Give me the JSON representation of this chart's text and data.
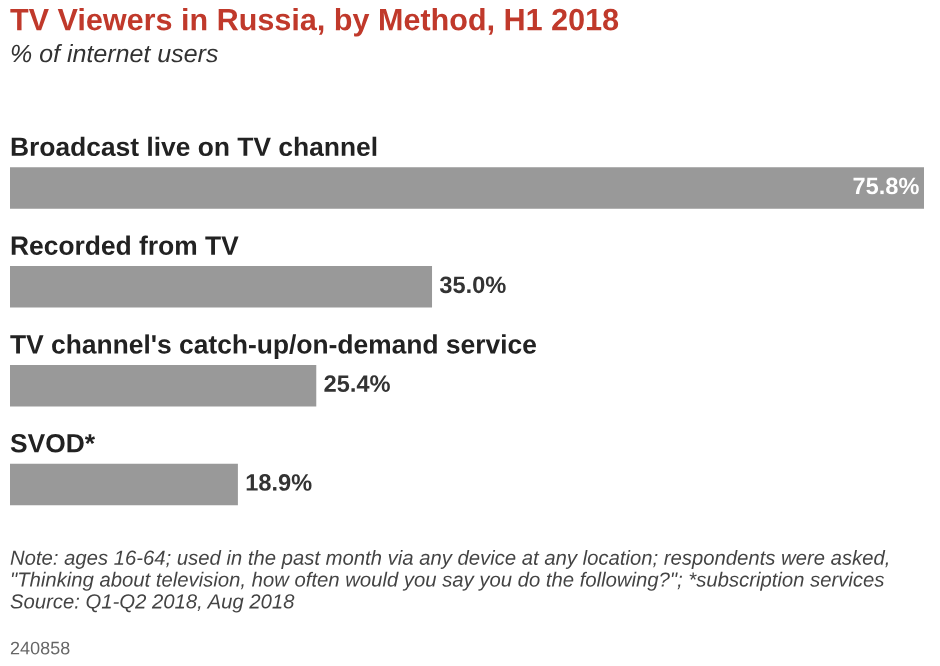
{
  "chart_data": {
    "type": "bar",
    "orientation": "horizontal",
    "title": "TV Viewers in Russia, by Method, H1 2018",
    "subtitle": "% of internet users",
    "categories": [
      "Broadcast live on TV channel",
      "Recorded from TV",
      "TV channel's catch-up/on-demand service",
      "SVOD*"
    ],
    "values": [
      75.8,
      35.0,
      25.4,
      18.9
    ],
    "color": "#999999",
    "data_labels": true,
    "value_labels": [
      "75.8%",
      "35.0%",
      "25.4%",
      "18.9%"
    ],
    "tick_labels": false,
    "annotations": [
      "Note: ages 16-64; used in the past month via any device at any location; respondents were asked, \"Thinking about television, how often would you say you do the following?\"; *subscription services",
      "Source: Q1-Q2 2018, Aug 2018",
      "240858"
    ]
  }
}
